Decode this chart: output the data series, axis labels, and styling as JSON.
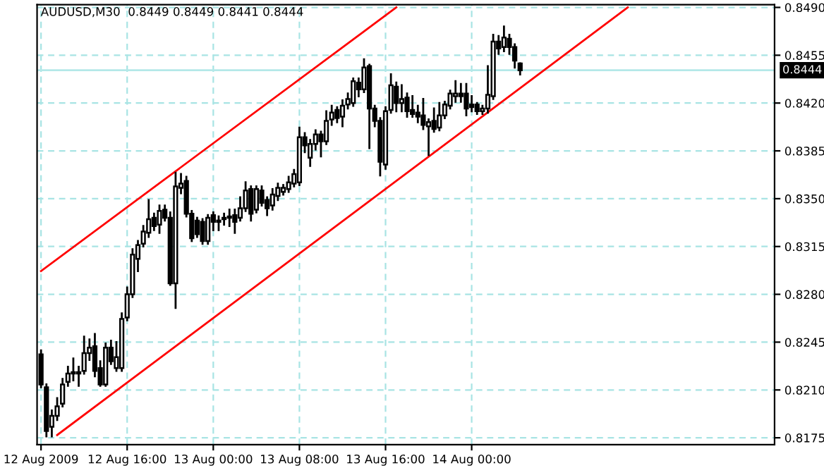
{
  "chart_data": {
    "type": "candlestick",
    "title": "AUDUSD,M30  0.8449 0.8449 0.8441 0.8444",
    "x": [
      "2009-08-12T08:00",
      "2009-08-12T08:30",
      "2009-08-12T09:00",
      "2009-08-12T09:30",
      "2009-08-12T10:00",
      "2009-08-12T10:30",
      "2009-08-12T11:00",
      "2009-08-12T11:30",
      "2009-08-12T12:00",
      "2009-08-12T12:30",
      "2009-08-12T13:00",
      "2009-08-12T13:30",
      "2009-08-12T14:00",
      "2009-08-12T14:30",
      "2009-08-12T15:00",
      "2009-08-12T15:30",
      "2009-08-12T16:00",
      "2009-08-12T16:30",
      "2009-08-12T17:00",
      "2009-08-12T17:30",
      "2009-08-12T18:00",
      "2009-08-12T18:30",
      "2009-08-12T19:00",
      "2009-08-12T19:30",
      "2009-08-12T20:00",
      "2009-08-12T20:30",
      "2009-08-12T21:00",
      "2009-08-12T21:30",
      "2009-08-12T22:00",
      "2009-08-12T22:30",
      "2009-08-12T23:00",
      "2009-08-12T23:30",
      "2009-08-13T00:00",
      "2009-08-13T00:30",
      "2009-08-13T01:00",
      "2009-08-13T01:30",
      "2009-08-13T02:00",
      "2009-08-13T02:30",
      "2009-08-13T03:00",
      "2009-08-13T03:30",
      "2009-08-13T04:00",
      "2009-08-13T04:30",
      "2009-08-13T05:00",
      "2009-08-13T05:30",
      "2009-08-13T06:00",
      "2009-08-13T06:30",
      "2009-08-13T07:00",
      "2009-08-13T07:30",
      "2009-08-13T08:00",
      "2009-08-13T08:30",
      "2009-08-13T09:00",
      "2009-08-13T09:30",
      "2009-08-13T10:00",
      "2009-08-13T10:30",
      "2009-08-13T11:00",
      "2009-08-13T11:30",
      "2009-08-13T12:00",
      "2009-08-13T12:30",
      "2009-08-13T13:00",
      "2009-08-13T13:30",
      "2009-08-13T14:00",
      "2009-08-13T14:30",
      "2009-08-13T15:00",
      "2009-08-13T15:30",
      "2009-08-13T16:00",
      "2009-08-13T16:30",
      "2009-08-13T17:00",
      "2009-08-13T17:30",
      "2009-08-13T18:00",
      "2009-08-13T18:30",
      "2009-08-13T19:00",
      "2009-08-13T19:30",
      "2009-08-13T20:00",
      "2009-08-13T20:30",
      "2009-08-13T21:00",
      "2009-08-13T21:30",
      "2009-08-13T22:00",
      "2009-08-13T22:30",
      "2009-08-13T23:00",
      "2009-08-13T23:30",
      "2009-08-14T00:00",
      "2009-08-14T00:30",
      "2009-08-14T01:00",
      "2009-08-14T01:30",
      "2009-08-14T02:00",
      "2009-08-14T02:30",
      "2009-08-14T03:00",
      "2009-08-14T03:30",
      "2009-08-14T04:00",
      "2009-08-14T04:30"
    ],
    "ohlc": [
      [
        0.8236,
        0.8239,
        0.8212,
        0.8214
      ],
      [
        0.8212,
        0.8214,
        0.8176,
        0.818
      ],
      [
        0.8183,
        0.8195,
        0.8176,
        0.8191
      ],
      [
        0.8191,
        0.8204,
        0.8188,
        0.8198
      ],
      [
        0.82,
        0.8218,
        0.8198,
        0.8214
      ],
      [
        0.8216,
        0.8227,
        0.8213,
        0.8222
      ],
      [
        0.8222,
        0.8233,
        0.8217,
        0.8223
      ],
      [
        0.8223,
        0.8227,
        0.8213,
        0.8222
      ],
      [
        0.8224,
        0.8249,
        0.8222,
        0.8237
      ],
      [
        0.8237,
        0.8247,
        0.8232,
        0.8241
      ],
      [
        0.8242,
        0.8251,
        0.822,
        0.8224
      ],
      [
        0.8226,
        0.8231,
        0.8213,
        0.8214
      ],
      [
        0.8214,
        0.8244,
        0.8213,
        0.8241
      ],
      [
        0.8241,
        0.8246,
        0.8229,
        0.8231
      ],
      [
        0.8226,
        0.8245,
        0.8224,
        0.8234
      ],
      [
        0.8226,
        0.8266,
        0.8224,
        0.8262
      ],
      [
        0.8263,
        0.8285,
        0.8261,
        0.828
      ],
      [
        0.828,
        0.8313,
        0.8278,
        0.8309
      ],
      [
        0.8306,
        0.8319,
        0.8297,
        0.8316
      ],
      [
        0.8317,
        0.833,
        0.8315,
        0.8326
      ],
      [
        0.8325,
        0.8349,
        0.8322,
        0.8335
      ],
      [
        0.8336,
        0.8339,
        0.8327,
        0.833
      ],
      [
        0.8331,
        0.8345,
        0.8325,
        0.8341
      ],
      [
        0.8342,
        0.8345,
        0.8334,
        0.8336
      ],
      [
        0.8336,
        0.834,
        0.8287,
        0.8288
      ],
      [
        0.8288,
        0.8369,
        0.827,
        0.8359
      ],
      [
        0.8358,
        0.8368,
        0.8354,
        0.8361
      ],
      [
        0.8363,
        0.8366,
        0.8337,
        0.8339
      ],
      [
        0.8339,
        0.8341,
        0.8319,
        0.8321
      ],
      [
        0.8334,
        0.8336,
        0.8322,
        0.8324
      ],
      [
        0.8333,
        0.8335,
        0.8317,
        0.8319
      ],
      [
        0.8319,
        0.8338,
        0.8317,
        0.8336
      ],
      [
        0.8338,
        0.834,
        0.8327,
        0.8333
      ],
      [
        0.8334,
        0.8337,
        0.8327,
        0.8333
      ],
      [
        0.8335,
        0.8339,
        0.8331,
        0.8336
      ],
      [
        0.8336,
        0.8342,
        0.833,
        0.8337
      ],
      [
        0.8338,
        0.8342,
        0.8325,
        0.8333
      ],
      [
        0.8336,
        0.8351,
        0.8334,
        0.8343
      ],
      [
        0.8343,
        0.8362,
        0.8341,
        0.8356
      ],
      [
        0.8357,
        0.8359,
        0.8334,
        0.8339
      ],
      [
        0.8342,
        0.8359,
        0.834,
        0.8357
      ],
      [
        0.8356,
        0.8359,
        0.8345,
        0.8347
      ],
      [
        0.8349,
        0.8351,
        0.8338,
        0.8343
      ],
      [
        0.8345,
        0.8357,
        0.8342,
        0.8353
      ],
      [
        0.8352,
        0.8361,
        0.8349,
        0.8358
      ],
      [
        0.8355,
        0.836,
        0.8353,
        0.8358
      ],
      [
        0.8357,
        0.8366,
        0.8355,
        0.8362
      ],
      [
        0.8361,
        0.8371,
        0.8359,
        0.8368
      ],
      [
        0.8362,
        0.8402,
        0.836,
        0.8395
      ],
      [
        0.8395,
        0.8398,
        0.8384,
        0.8389
      ],
      [
        0.838,
        0.8393,
        0.8374,
        0.839
      ],
      [
        0.839,
        0.84,
        0.8386,
        0.8397
      ],
      [
        0.8397,
        0.8399,
        0.8381,
        0.8392
      ],
      [
        0.8392,
        0.8414,
        0.839,
        0.8407
      ],
      [
        0.8408,
        0.8418,
        0.8404,
        0.8413
      ],
      [
        0.8415,
        0.8417,
        0.8406,
        0.8409
      ],
      [
        0.841,
        0.8422,
        0.8403,
        0.8418
      ],
      [
        0.8419,
        0.8427,
        0.8416,
        0.8423
      ],
      [
        0.842,
        0.8438,
        0.8418,
        0.8436
      ],
      [
        0.8435,
        0.8438,
        0.8425,
        0.843
      ],
      [
        0.843,
        0.8452,
        0.8428,
        0.8446
      ],
      [
        0.8447,
        0.8448,
        0.8387,
        0.8416
      ],
      [
        0.8416,
        0.8418,
        0.8403,
        0.8407
      ],
      [
        0.8407,
        0.8409,
        0.8367,
        0.8377
      ],
      [
        0.8375,
        0.8417,
        0.8372,
        0.8414
      ],
      [
        0.8415,
        0.8441,
        0.8413,
        0.8433
      ],
      [
        0.8432,
        0.8435,
        0.8414,
        0.842
      ],
      [
        0.842,
        0.8433,
        0.8414,
        0.8423
      ],
      [
        0.8424,
        0.8427,
        0.841,
        0.8414
      ],
      [
        0.8415,
        0.8425,
        0.841,
        0.8412
      ],
      [
        0.8413,
        0.8418,
        0.8406,
        0.841
      ],
      [
        0.8411,
        0.8423,
        0.8401,
        0.8404
      ],
      [
        0.8403,
        0.8408,
        0.8382,
        0.8406
      ],
      [
        0.8407,
        0.8416,
        0.8399,
        0.8401
      ],
      [
        0.8402,
        0.842,
        0.84,
        0.8411
      ],
      [
        0.8411,
        0.8421,
        0.8409,
        0.8419
      ],
      [
        0.8418,
        0.8429,
        0.8416,
        0.8427
      ],
      [
        0.8425,
        0.8436,
        0.8421,
        0.8427
      ],
      [
        0.8427,
        0.8434,
        0.8421,
        0.8425
      ],
      [
        0.8427,
        0.8434,
        0.8411,
        0.8416
      ],
      [
        0.8419,
        0.8425,
        0.8414,
        0.8417
      ],
      [
        0.8419,
        0.842,
        0.8412,
        0.8414
      ],
      [
        0.8414,
        0.8418,
        0.8412,
        0.8416
      ],
      [
        0.8416,
        0.8447,
        0.8413,
        0.8426
      ],
      [
        0.8425,
        0.847,
        0.8423,
        0.8465
      ],
      [
        0.8465,
        0.8469,
        0.8456,
        0.846
      ],
      [
        0.8461,
        0.8476,
        0.8458,
        0.8468
      ],
      [
        0.8467,
        0.847,
        0.8456,
        0.8461
      ],
      [
        0.8461,
        0.8463,
        0.8446,
        0.8451
      ],
      [
        0.8449,
        0.8449,
        0.8441,
        0.8444
      ]
    ],
    "color": "#000000",
    "series": [
      {
        "type": "line",
        "color": "#ff0000",
        "x": [
          "2009-08-12T08:00",
          "2009-08-13T17:00"
        ],
        "values": [
          0.8297,
          0.849
        ]
      },
      {
        "type": "line",
        "color": "#ff0000",
        "x": [
          "2009-08-12T09:30",
          "2009-08-14T14:30"
        ],
        "values": [
          0.8177,
          0.849
        ]
      }
    ],
    "ref_lines": [
      {
        "axis": "y",
        "value": 0.8444,
        "label": "0.8444",
        "color": "#b4e8e8"
      }
    ],
    "xlim": [
      "2009-08-12T07:38",
      "2009-08-15T04:08"
    ],
    "xticks": [
      {
        "value": "2009-08-12T08:00",
        "label": "12 Aug 2009"
      },
      {
        "value": "2009-08-12T16:00",
        "label": "12 Aug 16:00"
      },
      {
        "value": "2009-08-13T00:00",
        "label": "13 Aug 00:00"
      },
      {
        "value": "2009-08-13T08:00",
        "label": "13 Aug 08:00"
      },
      {
        "value": "2009-08-13T16:00",
        "label": "13 Aug 16:00"
      },
      {
        "value": "2009-08-14T00:00",
        "label": "14 Aug 00:00"
      }
    ],
    "ylim": [
      0.817,
      0.8492
    ],
    "yticks": [
      0.8175,
      {
        "value": 0.821,
        "label": "0.8210"
      },
      0.8245,
      {
        "value": 0.828,
        "label": "0.8280"
      },
      0.8315,
      {
        "value": 0.835,
        "label": "0.8350"
      },
      0.8385,
      {
        "value": 0.842,
        "label": "0.8420"
      },
      0.8455,
      {
        "value": 0.849,
        "label": "0.8490"
      }
    ],
    "grid": true
  }
}
